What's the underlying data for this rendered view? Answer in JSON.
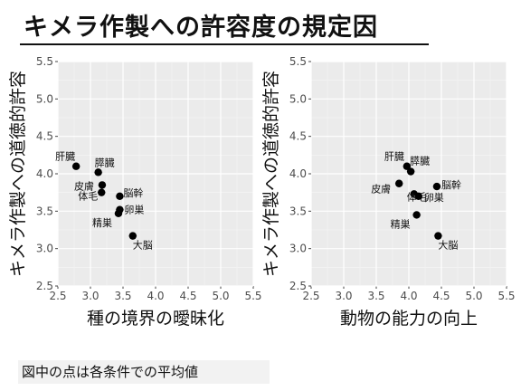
{
  "title": "キメラ作製への許容度の規定因",
  "note": "図中の点は各条件での平均値",
  "chart_data": [
    {
      "type": "scatter",
      "xlabel": "種の境界の曖昧化",
      "ylabel": "キメラ作製への道徳的許容",
      "xlim": [
        2.5,
        5.5
      ],
      "ylim": [
        2.5,
        5.5
      ],
      "xticks": [
        "2.5",
        "3.0",
        "3.5",
        "4.0",
        "4.5",
        "5.0",
        "5.5"
      ],
      "yticks": [
        "2.5",
        "3.0",
        "3.5",
        "4.0",
        "4.5",
        "5.0",
        "5.5"
      ],
      "grid": true,
      "points": [
        {
          "label": "肝臓",
          "x": 2.78,
          "y": 4.1
        },
        {
          "label": "膵臓",
          "x": 3.12,
          "y": 4.02
        },
        {
          "label": "皮膚",
          "x": 3.18,
          "y": 3.85
        },
        {
          "label": "脳幹",
          "x": 3.45,
          "y": 3.7
        },
        {
          "label": "体毛",
          "x": 3.17,
          "y": 3.75
        },
        {
          "label": "卵巣",
          "x": 3.45,
          "y": 3.52
        },
        {
          "label": "精巣",
          "x": 3.43,
          "y": 3.47
        },
        {
          "label": "大脳",
          "x": 3.65,
          "y": 3.17
        }
      ]
    },
    {
      "type": "scatter",
      "xlabel": "動物の能力の向上",
      "ylabel": "キメラ作製への道徳的許容",
      "xlim": [
        2.5,
        5.5
      ],
      "ylim": [
        2.5,
        5.5
      ],
      "xticks": [
        "2.5",
        "3.0",
        "3.5",
        "4.0",
        "4.5",
        "5.0",
        "5.5"
      ],
      "yticks": [
        "2.5",
        "3.0",
        "3.5",
        "4.0",
        "4.5",
        "5.0",
        "5.5"
      ],
      "grid": true,
      "points": [
        {
          "label": "肝臓",
          "x": 3.97,
          "y": 4.1
        },
        {
          "label": "膵臓",
          "x": 4.03,
          "y": 4.03
        },
        {
          "label": "皮膚",
          "x": 3.85,
          "y": 3.87
        },
        {
          "label": "脳幹",
          "x": 4.43,
          "y": 3.83
        },
        {
          "label": "体毛",
          "x": 4.08,
          "y": 3.73
        },
        {
          "label": "卵巣",
          "x": 4.15,
          "y": 3.7
        },
        {
          "label": "精巣",
          "x": 4.12,
          "y": 3.45
        },
        {
          "label": "大脳",
          "x": 4.45,
          "y": 3.17
        }
      ]
    }
  ]
}
